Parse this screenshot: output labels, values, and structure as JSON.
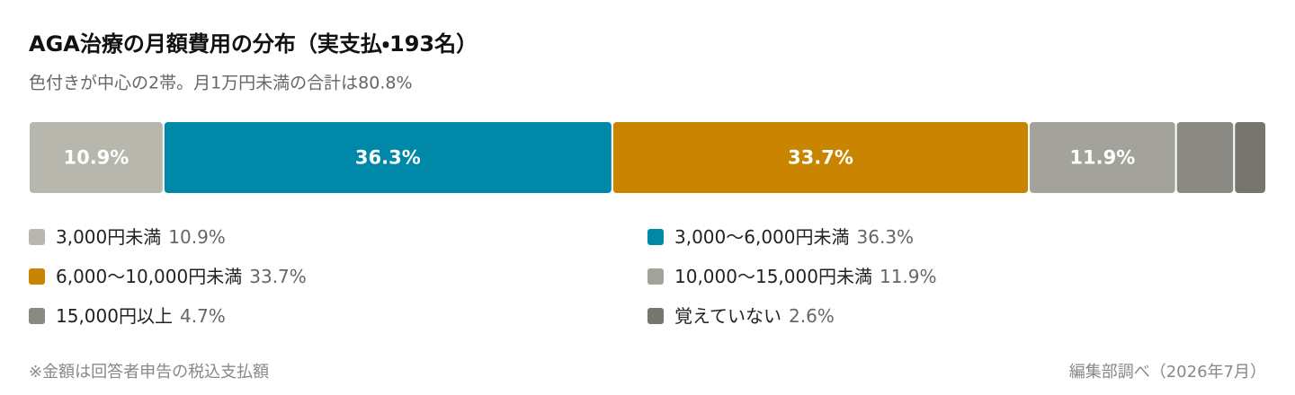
{
  "chart_data": {
    "type": "stacked-bar",
    "title": "AGA治療の月額費用の分布（実支払・193名）",
    "subtitle": "色付きが中心の2帯。月1万円未満の合計は80.8%",
    "series": [
      {
        "name": "3,000円未満",
        "color": "#b8b7ae",
        "values": [
          10.9
        ],
        "value_labels": [
          "10.9%"
        ]
      },
      {
        "name": "3,000〜6,000円未満",
        "color": "#0088a8",
        "values": [
          36.3
        ],
        "value_labels": [
          "36.3%"
        ]
      },
      {
        "name": "6,000〜10,000円未満",
        "color": "#c98500",
        "values": [
          33.7
        ],
        "value_labels": [
          "33.7%"
        ]
      },
      {
        "name": "10,000〜15,000円未満",
        "color": "#a3a29b",
        "values": [
          11.9
        ],
        "value_labels": [
          "11.9%"
        ]
      },
      {
        "name": "15,000円以上",
        "color": "#8a8983",
        "values": [
          4.7
        ],
        "value_labels": [
          "4.7%"
        ]
      },
      {
        "name": "覚えていない",
        "color": "#76766f",
        "values": [
          2.6
        ],
        "value_labels": [
          "2.6%"
        ]
      }
    ],
    "note": "※金額は回答者申告の税込支払額",
    "source": "編集部調べ（2026年7月）"
  }
}
